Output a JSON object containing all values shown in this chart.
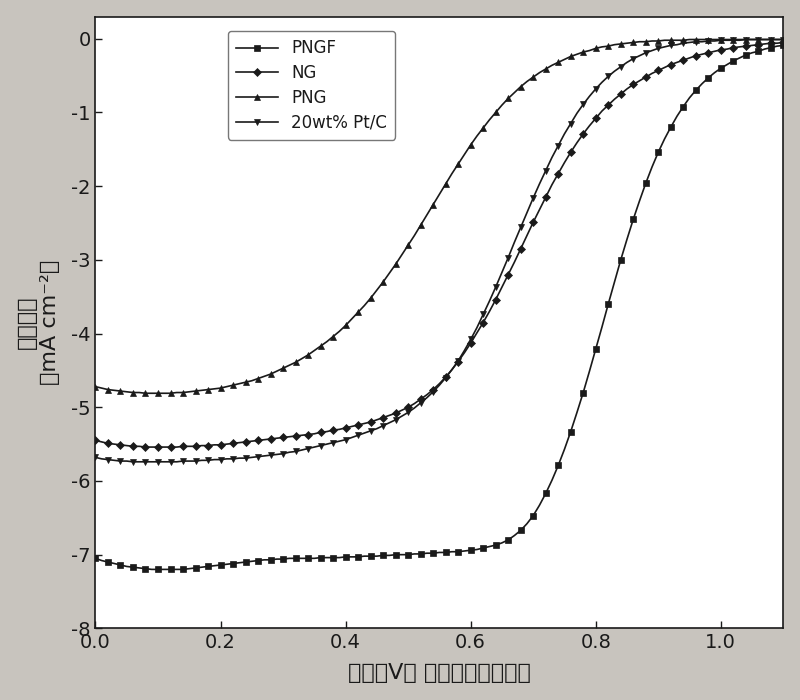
{
  "title": "",
  "xlabel": "电位（V） 相对于可逆氢电极",
  "ylabel": "电流密度（mA cm⁻²）",
  "ylabel_line1": "电流密度",
  "ylabel_line2": "mA cm⁻²",
  "xlim": [
    0.0,
    1.1
  ],
  "ylim": [
    -8,
    0.3
  ],
  "yticks": [
    0,
    -1,
    -2,
    -3,
    -4,
    -5,
    -6,
    -7,
    -8
  ],
  "xticks": [
    0.0,
    0.2,
    0.4,
    0.6,
    0.8,
    1.0
  ],
  "plot_bg": "#ffffff",
  "fig_bg": "#c8c4be",
  "line_color": "#1a1a1a",
  "series": [
    {
      "label": "PNGF",
      "marker": "s",
      "color": "#1a1a1a",
      "x": [
        0.0,
        0.01,
        0.02,
        0.03,
        0.04,
        0.05,
        0.06,
        0.07,
        0.08,
        0.09,
        0.1,
        0.11,
        0.12,
        0.13,
        0.14,
        0.15,
        0.16,
        0.17,
        0.18,
        0.19,
        0.2,
        0.21,
        0.22,
        0.23,
        0.24,
        0.25,
        0.26,
        0.27,
        0.28,
        0.29,
        0.3,
        0.31,
        0.32,
        0.33,
        0.34,
        0.35,
        0.36,
        0.37,
        0.38,
        0.39,
        0.4,
        0.41,
        0.42,
        0.43,
        0.44,
        0.45,
        0.46,
        0.47,
        0.48,
        0.49,
        0.5,
        0.51,
        0.52,
        0.53,
        0.54,
        0.55,
        0.56,
        0.57,
        0.58,
        0.59,
        0.6,
        0.61,
        0.62,
        0.63,
        0.64,
        0.65,
        0.66,
        0.67,
        0.68,
        0.69,
        0.7,
        0.71,
        0.72,
        0.73,
        0.74,
        0.75,
        0.76,
        0.77,
        0.78,
        0.79,
        0.8,
        0.81,
        0.82,
        0.83,
        0.84,
        0.85,
        0.86,
        0.87,
        0.88,
        0.89,
        0.9,
        0.91,
        0.92,
        0.93,
        0.94,
        0.95,
        0.96,
        0.97,
        0.98,
        0.99,
        1.0,
        1.01,
        1.02,
        1.03,
        1.04,
        1.05,
        1.06,
        1.07,
        1.08,
        1.09,
        1.1
      ],
      "y": [
        -7.05,
        -7.08,
        -7.1,
        -7.12,
        -7.14,
        -7.16,
        -7.17,
        -7.18,
        -7.19,
        -7.2,
        -7.2,
        -7.2,
        -7.2,
        -7.2,
        -7.2,
        -7.19,
        -7.18,
        -7.17,
        -7.16,
        -7.15,
        -7.14,
        -7.13,
        -7.12,
        -7.11,
        -7.1,
        -7.09,
        -7.08,
        -7.07,
        -7.07,
        -7.06,
        -7.06,
        -7.05,
        -7.05,
        -7.05,
        -7.05,
        -7.05,
        -7.04,
        -7.04,
        -7.04,
        -7.04,
        -7.03,
        -7.03,
        -7.03,
        -7.02,
        -7.02,
        -7.02,
        -7.01,
        -7.01,
        -7.0,
        -7.0,
        -7.0,
        -6.99,
        -6.99,
        -6.98,
        -6.98,
        -6.97,
        -6.97,
        -6.96,
        -6.96,
        -6.95,
        -6.94,
        -6.93,
        -6.91,
        -6.89,
        -6.87,
        -6.84,
        -6.8,
        -6.74,
        -6.67,
        -6.58,
        -6.47,
        -6.33,
        -6.17,
        -5.99,
        -5.79,
        -5.57,
        -5.33,
        -5.07,
        -4.8,
        -4.51,
        -4.21,
        -3.91,
        -3.6,
        -3.3,
        -3.0,
        -2.72,
        -2.45,
        -2.2,
        -1.96,
        -1.74,
        -1.54,
        -1.36,
        -1.2,
        -1.05,
        -0.92,
        -0.8,
        -0.7,
        -0.61,
        -0.53,
        -0.46,
        -0.4,
        -0.35,
        -0.3,
        -0.26,
        -0.22,
        -0.19,
        -0.17,
        -0.14,
        -0.12,
        -0.1,
        -0.09
      ]
    },
    {
      "label": "NG",
      "marker": "D",
      "color": "#1a1a1a",
      "x": [
        0.0,
        0.01,
        0.02,
        0.03,
        0.04,
        0.05,
        0.06,
        0.07,
        0.08,
        0.09,
        0.1,
        0.11,
        0.12,
        0.13,
        0.14,
        0.15,
        0.16,
        0.17,
        0.18,
        0.19,
        0.2,
        0.21,
        0.22,
        0.23,
        0.24,
        0.25,
        0.26,
        0.27,
        0.28,
        0.29,
        0.3,
        0.31,
        0.32,
        0.33,
        0.34,
        0.35,
        0.36,
        0.37,
        0.38,
        0.39,
        0.4,
        0.41,
        0.42,
        0.43,
        0.44,
        0.45,
        0.46,
        0.47,
        0.48,
        0.49,
        0.5,
        0.51,
        0.52,
        0.53,
        0.54,
        0.55,
        0.56,
        0.57,
        0.58,
        0.59,
        0.6,
        0.61,
        0.62,
        0.63,
        0.64,
        0.65,
        0.66,
        0.67,
        0.68,
        0.69,
        0.7,
        0.71,
        0.72,
        0.73,
        0.74,
        0.75,
        0.76,
        0.77,
        0.78,
        0.79,
        0.8,
        0.81,
        0.82,
        0.83,
        0.84,
        0.85,
        0.86,
        0.87,
        0.88,
        0.89,
        0.9,
        0.91,
        0.92,
        0.93,
        0.94,
        0.95,
        0.96,
        0.97,
        0.98,
        0.99,
        1.0,
        1.01,
        1.02,
        1.03,
        1.04,
        1.05,
        1.06,
        1.07,
        1.08,
        1.09,
        1.1
      ],
      "y": [
        -5.45,
        -5.47,
        -5.49,
        -5.5,
        -5.51,
        -5.52,
        -5.53,
        -5.53,
        -5.54,
        -5.54,
        -5.54,
        -5.54,
        -5.54,
        -5.54,
        -5.53,
        -5.53,
        -5.53,
        -5.52,
        -5.52,
        -5.51,
        -5.51,
        -5.5,
        -5.49,
        -5.48,
        -5.47,
        -5.46,
        -5.45,
        -5.44,
        -5.43,
        -5.42,
        -5.41,
        -5.4,
        -5.39,
        -5.38,
        -5.37,
        -5.36,
        -5.34,
        -5.33,
        -5.31,
        -5.3,
        -5.28,
        -5.26,
        -5.24,
        -5.22,
        -5.2,
        -5.17,
        -5.14,
        -5.11,
        -5.08,
        -5.04,
        -5.0,
        -4.95,
        -4.89,
        -4.83,
        -4.76,
        -4.68,
        -4.59,
        -4.49,
        -4.38,
        -4.26,
        -4.13,
        -3.99,
        -3.85,
        -3.7,
        -3.54,
        -3.37,
        -3.2,
        -3.03,
        -2.85,
        -2.67,
        -2.49,
        -2.32,
        -2.15,
        -1.98,
        -1.83,
        -1.68,
        -1.54,
        -1.41,
        -1.29,
        -1.18,
        -1.08,
        -0.98,
        -0.9,
        -0.82,
        -0.75,
        -0.68,
        -0.62,
        -0.57,
        -0.52,
        -0.47,
        -0.43,
        -0.39,
        -0.35,
        -0.32,
        -0.29,
        -0.26,
        -0.23,
        -0.21,
        -0.19,
        -0.17,
        -0.15,
        -0.14,
        -0.12,
        -0.11,
        -0.1,
        -0.09,
        -0.08,
        -0.07,
        -0.06,
        -0.06,
        -0.05
      ]
    },
    {
      "label": "PNG",
      "marker": "^",
      "color": "#1a1a1a",
      "x": [
        0.0,
        0.01,
        0.02,
        0.03,
        0.04,
        0.05,
        0.06,
        0.07,
        0.08,
        0.09,
        0.1,
        0.11,
        0.12,
        0.13,
        0.14,
        0.15,
        0.16,
        0.17,
        0.18,
        0.19,
        0.2,
        0.21,
        0.22,
        0.23,
        0.24,
        0.25,
        0.26,
        0.27,
        0.28,
        0.29,
        0.3,
        0.31,
        0.32,
        0.33,
        0.34,
        0.35,
        0.36,
        0.37,
        0.38,
        0.39,
        0.4,
        0.41,
        0.42,
        0.43,
        0.44,
        0.45,
        0.46,
        0.47,
        0.48,
        0.49,
        0.5,
        0.51,
        0.52,
        0.53,
        0.54,
        0.55,
        0.56,
        0.57,
        0.58,
        0.59,
        0.6,
        0.61,
        0.62,
        0.63,
        0.64,
        0.65,
        0.66,
        0.67,
        0.68,
        0.69,
        0.7,
        0.71,
        0.72,
        0.73,
        0.74,
        0.75,
        0.76,
        0.77,
        0.78,
        0.79,
        0.8,
        0.81,
        0.82,
        0.83,
        0.84,
        0.85,
        0.86,
        0.87,
        0.88,
        0.89,
        0.9,
        0.91,
        0.92,
        0.93,
        0.94,
        0.95,
        0.96,
        0.97,
        0.98,
        0.99,
        1.0,
        1.01,
        1.02,
        1.03,
        1.04,
        1.05,
        1.06,
        1.07,
        1.08,
        1.09,
        1.1
      ],
      "y": [
        -4.72,
        -4.74,
        -4.76,
        -4.77,
        -4.78,
        -4.79,
        -4.8,
        -4.8,
        -4.81,
        -4.81,
        -4.81,
        -4.81,
        -4.81,
        -4.8,
        -4.8,
        -4.79,
        -4.78,
        -4.77,
        -4.76,
        -4.75,
        -4.74,
        -4.72,
        -4.7,
        -4.68,
        -4.66,
        -4.64,
        -4.61,
        -4.58,
        -4.55,
        -4.51,
        -4.47,
        -4.43,
        -4.39,
        -4.34,
        -4.29,
        -4.23,
        -4.17,
        -4.11,
        -4.04,
        -3.97,
        -3.89,
        -3.8,
        -3.71,
        -3.62,
        -3.52,
        -3.41,
        -3.3,
        -3.18,
        -3.06,
        -2.93,
        -2.8,
        -2.67,
        -2.53,
        -2.39,
        -2.25,
        -2.11,
        -1.97,
        -1.83,
        -1.7,
        -1.57,
        -1.44,
        -1.32,
        -1.21,
        -1.1,
        -1.0,
        -0.9,
        -0.81,
        -0.73,
        -0.65,
        -0.58,
        -0.52,
        -0.46,
        -0.41,
        -0.36,
        -0.32,
        -0.28,
        -0.24,
        -0.21,
        -0.18,
        -0.16,
        -0.13,
        -0.11,
        -0.1,
        -0.08,
        -0.07,
        -0.06,
        -0.05,
        -0.04,
        -0.04,
        -0.03,
        -0.03,
        -0.02,
        -0.02,
        -0.02,
        -0.02,
        -0.01,
        -0.01,
        -0.01,
        -0.01,
        -0.01,
        -0.01,
        -0.01,
        -0.01,
        -0.01,
        -0.01,
        -0.01,
        -0.01,
        -0.01,
        -0.01,
        -0.01,
        -0.01
      ]
    },
    {
      "label": "20wt% Pt/C",
      "marker": "v",
      "color": "#1a1a1a",
      "x": [
        0.0,
        0.01,
        0.02,
        0.03,
        0.04,
        0.05,
        0.06,
        0.07,
        0.08,
        0.09,
        0.1,
        0.11,
        0.12,
        0.13,
        0.14,
        0.15,
        0.16,
        0.17,
        0.18,
        0.19,
        0.2,
        0.21,
        0.22,
        0.23,
        0.24,
        0.25,
        0.26,
        0.27,
        0.28,
        0.29,
        0.3,
        0.31,
        0.32,
        0.33,
        0.34,
        0.35,
        0.36,
        0.37,
        0.38,
        0.39,
        0.4,
        0.41,
        0.42,
        0.43,
        0.44,
        0.45,
        0.46,
        0.47,
        0.48,
        0.49,
        0.5,
        0.51,
        0.52,
        0.53,
        0.54,
        0.55,
        0.56,
        0.57,
        0.58,
        0.59,
        0.6,
        0.61,
        0.62,
        0.63,
        0.64,
        0.65,
        0.66,
        0.67,
        0.68,
        0.69,
        0.7,
        0.71,
        0.72,
        0.73,
        0.74,
        0.75,
        0.76,
        0.77,
        0.78,
        0.79,
        0.8,
        0.81,
        0.82,
        0.83,
        0.84,
        0.85,
        0.86,
        0.87,
        0.88,
        0.89,
        0.9,
        0.91,
        0.92,
        0.93,
        0.94,
        0.95,
        0.96,
        0.97,
        0.98,
        0.99,
        1.0,
        1.01,
        1.02,
        1.03,
        1.04,
        1.05,
        1.06,
        1.07,
        1.08,
        1.09,
        1.1
      ],
      "y": [
        -5.68,
        -5.7,
        -5.71,
        -5.72,
        -5.73,
        -5.73,
        -5.74,
        -5.74,
        -5.74,
        -5.74,
        -5.74,
        -5.74,
        -5.74,
        -5.74,
        -5.73,
        -5.73,
        -5.73,
        -5.72,
        -5.72,
        -5.71,
        -5.71,
        -5.7,
        -5.7,
        -5.69,
        -5.69,
        -5.68,
        -5.67,
        -5.66,
        -5.65,
        -5.64,
        -5.63,
        -5.61,
        -5.6,
        -5.58,
        -5.56,
        -5.54,
        -5.52,
        -5.5,
        -5.48,
        -5.46,
        -5.44,
        -5.41,
        -5.38,
        -5.35,
        -5.32,
        -5.29,
        -5.25,
        -5.21,
        -5.17,
        -5.12,
        -5.07,
        -5.01,
        -4.94,
        -4.87,
        -4.79,
        -4.7,
        -4.6,
        -4.49,
        -4.37,
        -4.23,
        -4.08,
        -3.92,
        -3.74,
        -3.56,
        -3.37,
        -3.17,
        -2.97,
        -2.76,
        -2.56,
        -2.36,
        -2.16,
        -1.97,
        -1.79,
        -1.61,
        -1.45,
        -1.29,
        -1.15,
        -1.01,
        -0.89,
        -0.78,
        -0.68,
        -0.59,
        -0.51,
        -0.44,
        -0.38,
        -0.32,
        -0.27,
        -0.23,
        -0.19,
        -0.16,
        -0.13,
        -0.11,
        -0.09,
        -0.08,
        -0.06,
        -0.05,
        -0.04,
        -0.04,
        -0.03,
        -0.03,
        -0.02,
        -0.02,
        -0.02,
        -0.02,
        -0.01,
        -0.01,
        -0.01,
        -0.01,
        -0.01,
        -0.01,
        -0.01
      ]
    }
  ],
  "marker_size": 4,
  "marker_every": 2,
  "linewidth": 1.2,
  "legend_fontsize": 12,
  "axis_fontsize": 16,
  "tick_fontsize": 14
}
